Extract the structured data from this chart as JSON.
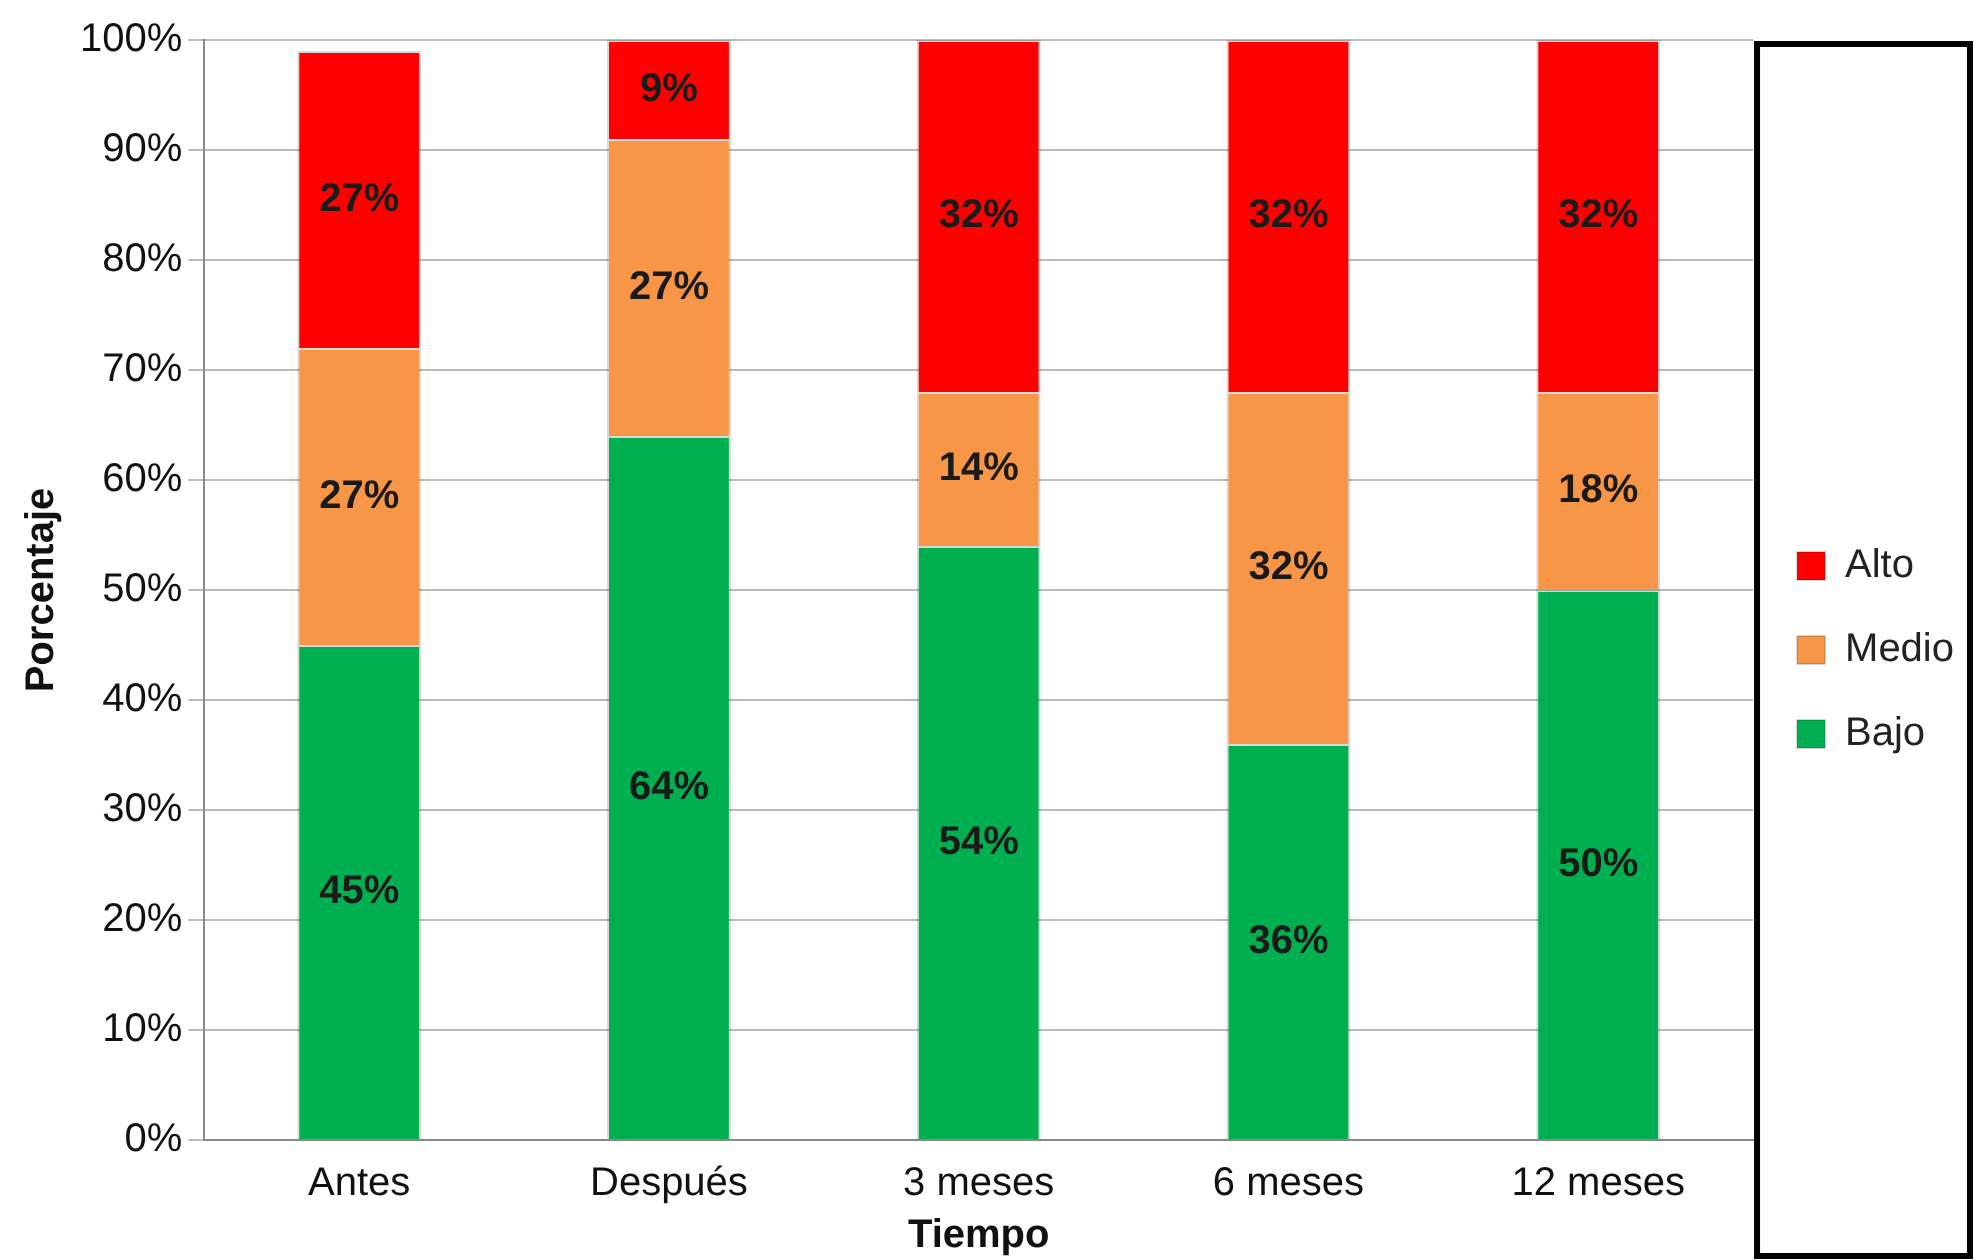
{
  "chart_data": {
    "type": "bar",
    "stacked": true,
    "xlabel": "Tiempo",
    "ylabel": "Porcentaje",
    "categories": [
      "Antes",
      "Después",
      "3 meses",
      "6 meses",
      "12 meses"
    ],
    "series": [
      {
        "name": "Bajo",
        "color": "#00b050",
        "values": [
          45,
          64,
          54,
          36,
          50
        ],
        "value_labels": [
          "45%",
          "64%",
          "54%",
          "36%",
          "50%"
        ]
      },
      {
        "name": "Medio",
        "color": "#f79646",
        "values": [
          27,
          27,
          14,
          32,
          18
        ],
        "value_labels": [
          "27%",
          "27%",
          "14%",
          "32%",
          "18%"
        ]
      },
      {
        "name": "Alto",
        "color": "#ff0000",
        "values": [
          27,
          9,
          32,
          32,
          32
        ],
        "value_labels": [
          "27%",
          "9%",
          "32%",
          "32%",
          "32%"
        ]
      }
    ],
    "ylim": [
      0,
      100
    ],
    "yticks": [
      {
        "value": 0,
        "label": "0%"
      },
      {
        "value": 10,
        "label": "10%"
      },
      {
        "value": 20,
        "label": "20%"
      },
      {
        "value": 30,
        "label": "30%"
      },
      {
        "value": 40,
        "label": "40%"
      },
      {
        "value": 50,
        "label": "50%"
      },
      {
        "value": 60,
        "label": "60%"
      },
      {
        "value": 70,
        "label": "70%"
      },
      {
        "value": 80,
        "label": "80%"
      },
      {
        "value": 90,
        "label": "90%"
      },
      {
        "value": 100,
        "label": "100%"
      }
    ],
    "grid": "y",
    "legend": "right"
  }
}
